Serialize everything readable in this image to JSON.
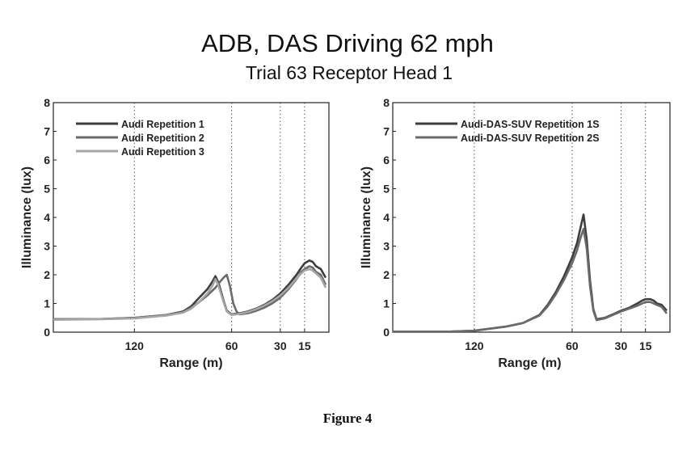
{
  "main_title": "ADB, DAS Driving 62 mph",
  "subtitle": "Trial 63 Receptor Head 1",
  "caption": "Figure 4",
  "chart_data": [
    {
      "type": "line",
      "xlabel": "Range (m)",
      "ylabel": "Illuminance (lux)",
      "xlim": [
        170,
        0
      ],
      "ylim": [
        0,
        8
      ],
      "xticks": [
        120,
        60,
        30,
        15
      ],
      "yticks": [
        0,
        1,
        2,
        3,
        4,
        5,
        6,
        7,
        8
      ],
      "grid": "vertical dotted",
      "legend_position": "top-left",
      "series": [
        {
          "name": "Audi Repetition 1",
          "color": "#3d3d3d",
          "x": [
            170,
            140,
            120,
            100,
            90,
            85,
            80,
            75,
            72,
            70,
            68,
            65,
            63,
            60,
            55,
            50,
            45,
            40,
            35,
            30,
            25,
            20,
            17,
            15,
            12,
            10,
            8,
            5,
            2
          ],
          "y": [
            0.45,
            0.46,
            0.5,
            0.6,
            0.72,
            0.9,
            1.2,
            1.5,
            1.75,
            1.95,
            1.7,
            1.1,
            0.75,
            0.62,
            0.66,
            0.72,
            0.82,
            0.95,
            1.12,
            1.35,
            1.65,
            2.0,
            2.25,
            2.4,
            2.5,
            2.45,
            2.3,
            2.2,
            1.9
          ]
        },
        {
          "name": "Audi Repetition 2",
          "color": "#6a6a6a",
          "x": [
            170,
            140,
            120,
            100,
            90,
            85,
            80,
            75,
            70,
            68,
            65,
            63,
            61,
            59,
            57,
            55,
            50,
            45,
            40,
            35,
            30,
            25,
            20,
            17,
            15,
            12,
            10,
            8,
            5,
            2
          ],
          "y": [
            0.45,
            0.46,
            0.5,
            0.6,
            0.7,
            0.85,
            1.05,
            1.28,
            1.55,
            1.7,
            1.9,
            2.0,
            1.6,
            1.0,
            0.72,
            0.62,
            0.66,
            0.74,
            0.85,
            1.0,
            1.2,
            1.5,
            1.85,
            2.1,
            2.2,
            2.3,
            2.25,
            2.1,
            2.0,
            1.65
          ]
        },
        {
          "name": "Audi Repetition 3",
          "color": "#a6a6a6",
          "x": [
            170,
            140,
            120,
            100,
            90,
            85,
            80,
            75,
            72,
            70,
            68,
            65,
            63,
            60,
            55,
            50,
            45,
            40,
            35,
            30,
            25,
            20,
            17,
            15,
            12,
            10,
            8,
            5,
            2
          ],
          "y": [
            0.43,
            0.45,
            0.48,
            0.58,
            0.68,
            0.82,
            1.05,
            1.35,
            1.6,
            1.85,
            1.6,
            1.05,
            0.72,
            0.6,
            0.64,
            0.7,
            0.8,
            0.92,
            1.08,
            1.28,
            1.55,
            1.88,
            2.05,
            2.15,
            2.2,
            2.15,
            2.05,
            1.9,
            1.55
          ]
        }
      ]
    },
    {
      "type": "line",
      "xlabel": "Range (m)",
      "ylabel": "Illuminance (lux)",
      "xlim": [
        170,
        0
      ],
      "ylim": [
        0,
        8
      ],
      "xticks": [
        120,
        60,
        30,
        15
      ],
      "yticks": [
        0,
        1,
        2,
        3,
        4,
        5,
        6,
        7,
        8
      ],
      "grid": "vertical dotted",
      "legend_position": "top-left",
      "series": [
        {
          "name": "Audi-DAS-SUV Repetition 1S",
          "color": "#3d3d3d",
          "x": [
            170,
            150,
            135,
            120,
            100,
            90,
            80,
            75,
            70,
            65,
            60,
            57,
            55,
            53,
            51,
            49,
            47,
            45,
            40,
            35,
            30,
            25,
            20,
            17,
            15,
            12,
            10,
            8,
            5,
            2
          ],
          "y": [
            0.02,
            0.02,
            0.02,
            0.05,
            0.2,
            0.32,
            0.6,
            0.95,
            1.4,
            1.95,
            2.6,
            3.1,
            3.6,
            4.1,
            3.2,
            1.8,
            0.8,
            0.45,
            0.5,
            0.62,
            0.75,
            0.85,
            1.0,
            1.1,
            1.15,
            1.15,
            1.1,
            1.0,
            0.95,
            0.75
          ]
        },
        {
          "name": "Audi-DAS-SUV Repetition 2S",
          "color": "#6a6a6a",
          "x": [
            170,
            150,
            135,
            120,
            100,
            90,
            80,
            75,
            70,
            65,
            60,
            57,
            55,
            53,
            51,
            49,
            47,
            45,
            40,
            35,
            30,
            25,
            20,
            17,
            15,
            12,
            10,
            8,
            5,
            2
          ],
          "y": [
            0.02,
            0.02,
            0.02,
            0.05,
            0.2,
            0.32,
            0.58,
            0.9,
            1.32,
            1.82,
            2.4,
            2.85,
            3.25,
            3.6,
            2.9,
            1.6,
            0.75,
            0.42,
            0.48,
            0.6,
            0.72,
            0.82,
            0.92,
            1.0,
            1.05,
            1.05,
            1.0,
            0.95,
            0.88,
            0.65
          ]
        }
      ]
    }
  ]
}
